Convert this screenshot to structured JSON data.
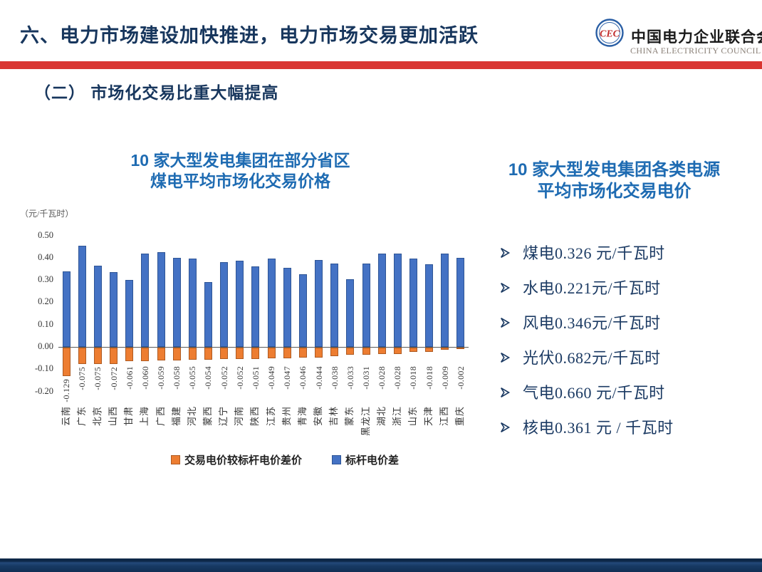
{
  "header": {
    "title": "六、电力市场建设加快推进，电力市场交易更加活跃",
    "logo": {
      "emblem_text": "CEC",
      "org_cn": "中国电力企业联合会",
      "org_en": "CHINA ELECTRICITY COUNCIL"
    }
  },
  "section": {
    "subtitle": "（二） 市场化交易比重大幅提高"
  },
  "left_panel": {
    "title_line1": "10 家大型发电集团在部分省区",
    "title_line2": "煤电平均市场化交易价格"
  },
  "right_panel": {
    "title_line1": "10 家大型发电集团各类电源",
    "title_line2": "平均市场化交易电价",
    "items": [
      "煤电0.326 元/千瓦时",
      "水电0.221元/千瓦时",
      "风电0.346元/千瓦时",
      "光伏0.682元/千瓦时",
      "气电0.660 元/千瓦时",
      "核电0.361 元 / 千瓦时"
    ]
  },
  "chart_data": {
    "type": "bar",
    "title": "10 家大型发电集团在部分省区煤电平均市场化交易价格",
    "unit_label": "（元/千瓦时）",
    "xlabel": "",
    "ylabel": "元/千瓦时",
    "ylim": [
      -0.2,
      0.5
    ],
    "yticks": [
      0.5,
      0.4,
      0.3,
      0.2,
      0.1,
      0.0,
      -0.1,
      -0.2
    ],
    "grid": false,
    "legend_position": "bottom",
    "categories": [
      "云南",
      "广东",
      "北京",
      "山西",
      "甘肃",
      "上海",
      "广西",
      "福建",
      "河北",
      "蒙西",
      "辽宁",
      "河南",
      "陕西",
      "江苏",
      "贵州",
      "青海",
      "安徽",
      "吉林",
      "蒙东",
      "黑龙江",
      "湖北",
      "浙江",
      "山东",
      "天津",
      "江西",
      "重庆"
    ],
    "series": [
      {
        "name": "交易电价较标杆电价差价",
        "color": "#ED7D31",
        "border_color": "#AE5A21",
        "labeled": true,
        "values": [
          -0.129,
          -0.075,
          -0.075,
          -0.072,
          -0.061,
          -0.06,
          -0.059,
          -0.058,
          -0.055,
          -0.054,
          -0.052,
          -0.052,
          -0.051,
          -0.049,
          -0.047,
          -0.046,
          -0.044,
          -0.038,
          -0.033,
          -0.031,
          -0.028,
          -0.028,
          -0.018,
          -0.018,
          -0.009,
          -0.002
        ]
      },
      {
        "name": "标杆电价差",
        "color": "#4472C4",
        "border_color": "#2E5596",
        "labeled": false,
        "values": [
          0.34,
          0.455,
          0.365,
          0.335,
          0.3,
          0.42,
          0.425,
          0.4,
          0.395,
          0.29,
          0.38,
          0.385,
          0.36,
          0.395,
          0.355,
          0.325,
          0.39,
          0.375,
          0.305,
          0.375,
          0.42,
          0.42,
          0.395,
          0.37,
          0.42,
          0.4
        ]
      }
    ]
  },
  "colors": {
    "header_navy": "#17365D",
    "panel_title_blue": "#1E6BB2",
    "red_band": "#D93531",
    "footer_navy": "#14335C",
    "bullet_navy": "#1B3A63"
  }
}
